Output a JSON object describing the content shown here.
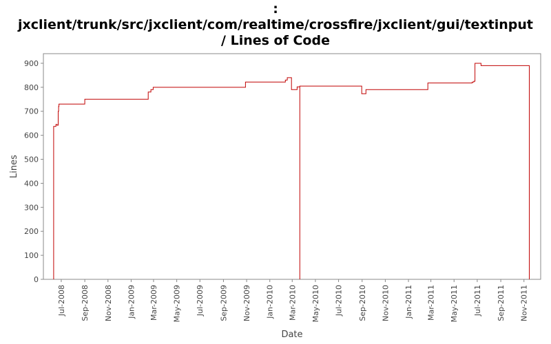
{
  "title_lines": [
    ":",
    "jxclient/trunk/src/jxclient/com/realtime/crossfire/jxclient/gui/textinput",
    "/ Lines of Code"
  ],
  "colors": {
    "series": "#c00000",
    "axis": "#888888",
    "grid": "#ffffff",
    "plot_bg": "#ffffff"
  },
  "chart_data": {
    "type": "line",
    "step": true,
    "title": ": jxclient/trunk/src/jxclient/com/realtime/crossfire/jxclient/gui/textinput / Lines of Code",
    "xlabel": "Date",
    "ylabel": "Lines",
    "ylim": [
      0,
      940
    ],
    "xlim": [
      "2008-05-15",
      "2011-12-15"
    ],
    "yticks": [
      0,
      100,
      200,
      300,
      400,
      500,
      600,
      700,
      800,
      900
    ],
    "xticks": [
      {
        "date": "2008-07-01",
        "label": "Jul-2008"
      },
      {
        "date": "2008-09-01",
        "label": "Sep-2008"
      },
      {
        "date": "2008-11-01",
        "label": "Nov-2008"
      },
      {
        "date": "2009-01-01",
        "label": "Jan-2009"
      },
      {
        "date": "2009-03-01",
        "label": "Mar-2009"
      },
      {
        "date": "2009-05-01",
        "label": "May-2009"
      },
      {
        "date": "2009-07-01",
        "label": "Jul-2009"
      },
      {
        "date": "2009-09-01",
        "label": "Sep-2009"
      },
      {
        "date": "2009-11-01",
        "label": "Nov-2009"
      },
      {
        "date": "2010-01-01",
        "label": "Jan-2010"
      },
      {
        "date": "2010-03-01",
        "label": "Mar-2010"
      },
      {
        "date": "2010-05-01",
        "label": "May-2010"
      },
      {
        "date": "2010-07-01",
        "label": "Jul-2010"
      },
      {
        "date": "2010-09-01",
        "label": "Sep-2010"
      },
      {
        "date": "2010-11-01",
        "label": "Nov-2010"
      },
      {
        "date": "2011-01-01",
        "label": "Jan-2011"
      },
      {
        "date": "2011-03-01",
        "label": "Mar-2011"
      },
      {
        "date": "2011-05-01",
        "label": "May-2011"
      },
      {
        "date": "2011-07-01",
        "label": "Jul-2011"
      },
      {
        "date": "2011-09-01",
        "label": "Sep-2011"
      },
      {
        "date": "2011-11-01",
        "label": "Nov-2011"
      }
    ],
    "legend": "none",
    "grid": false,
    "series": [
      {
        "points": [
          [
            "2008-06-11",
            0
          ],
          [
            "2008-06-11",
            637
          ],
          [
            "2008-06-17",
            645
          ],
          [
            "2008-06-20",
            642
          ],
          [
            "2008-06-23",
            700
          ],
          [
            "2008-06-24",
            720
          ],
          [
            "2008-06-25",
            730
          ],
          [
            "2008-09-01",
            750
          ],
          [
            "2009-02-15",
            780
          ],
          [
            "2009-02-22",
            790
          ],
          [
            "2009-02-28",
            800
          ],
          [
            "2009-10-29",
            822
          ],
          [
            "2010-02-11",
            830
          ],
          [
            "2010-02-16",
            840
          ],
          [
            "2010-02-27",
            790
          ],
          [
            "2010-03-14",
            802
          ],
          [
            "2010-03-21",
            0
          ],
          [
            "2010-03-21",
            805
          ],
          [
            "2010-08-31",
            773
          ],
          [
            "2010-09-11",
            790
          ],
          [
            "2011-02-21",
            818
          ],
          [
            "2011-06-18",
            822
          ],
          [
            "2011-06-22",
            825
          ],
          [
            "2011-06-25",
            900
          ],
          [
            "2011-07-11",
            890
          ],
          [
            "2011-11-15",
            890
          ],
          [
            "2011-11-15",
            0
          ]
        ]
      }
    ]
  }
}
